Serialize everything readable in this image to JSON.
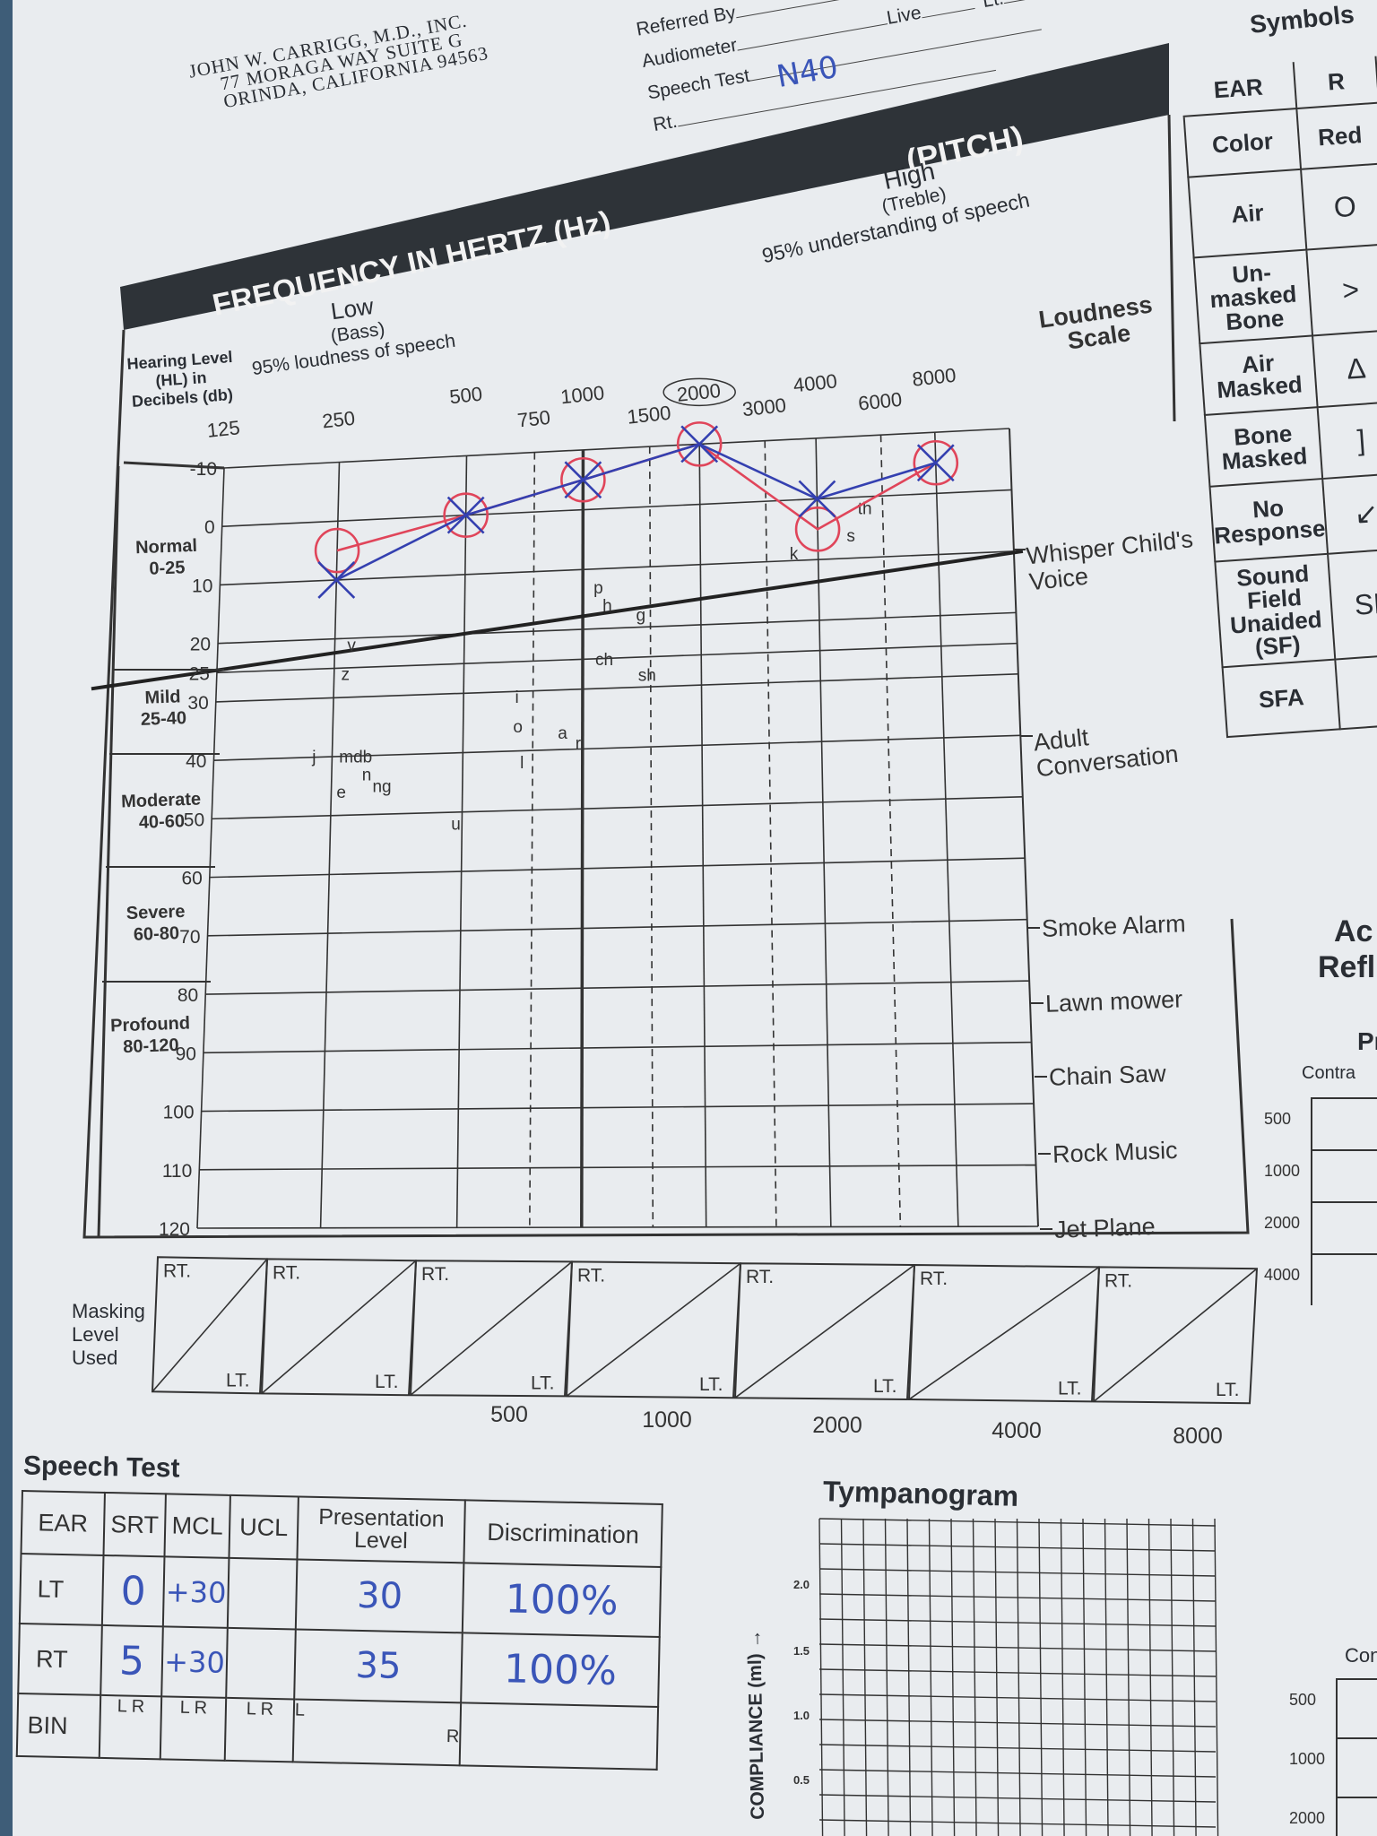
{
  "clinic": {
    "name": "JOHN W. CARRIGG, M.D., INC.",
    "address1": "77 MORAGA WAY     SUITE G",
    "address2": "ORINDA, CALIFORNIA 94563"
  },
  "form_fields": {
    "referred_by": "Referred By",
    "audiometer": "Audiometer",
    "speech_test": "Speech Test",
    "speech_test_value": "N40",
    "rt": "Rt.",
    "live": "Live",
    "lt": "Lt."
  },
  "banner": {
    "title": "FREQUENCY IN HERTZ (Hz)",
    "pitch": "(PITCH)"
  },
  "freq_labels": {
    "low": "Low",
    "bass": "(Bass)",
    "low_caption": "95% loudness of speech",
    "high": "High",
    "treble": "(Treble)",
    "high_caption": "95% understanding of speech",
    "hearing_level": "Hearing Level (HL) in Decibels (db)",
    "loudness_scale": "Loudness Scale"
  },
  "frequencies": [
    "125",
    "250",
    "500",
    "750",
    "1000",
    "1500",
    "2000",
    "3000",
    "4000",
    "6000",
    "8000"
  ],
  "db_ticks": [
    "-10",
    "0",
    "10",
    "20",
    "25",
    "30",
    "40",
    "50",
    "60",
    "70",
    "80",
    "90",
    "100",
    "110",
    "120"
  ],
  "hearing_categories": [
    {
      "name": "Normal",
      "range": "0-25"
    },
    {
      "name": "Mild",
      "range": "25-40"
    },
    {
      "name": "Moderate",
      "range": "40-60"
    },
    {
      "name": "Severe",
      "range": "60-80"
    },
    {
      "name": "Profound",
      "range": "80-120"
    }
  ],
  "loudness_scale": [
    "Whisper Child's Voice",
    "Adult Conversation",
    "Smoke Alarm",
    "Lawn mower",
    "Chain Saw",
    "Rock Music",
    "Jet Plane"
  ],
  "speech_sounds": [
    "v",
    "z",
    "p",
    "h",
    "g",
    "ch",
    "sh",
    "i",
    "o",
    "a",
    "r",
    "j",
    "mdb",
    "n",
    "ng",
    "e",
    "l",
    "u",
    "k",
    "s",
    "th"
  ],
  "chart_data": {
    "type": "line",
    "title": "FREQUENCY IN HERTZ (Hz)",
    "x_scale": "log",
    "x": [
      250,
      500,
      1000,
      2000,
      4000,
      8000
    ],
    "ylim": [
      120,
      -10
    ],
    "series": [
      {
        "name": "RT",
        "color": "#e0455a",
        "marker": "circle",
        "values": [
          5,
          0,
          -5,
          -10,
          5,
          -5
        ]
      },
      {
        "name": "LT",
        "color": "#3440b0",
        "marker": "x",
        "values": [
          10,
          0,
          -5,
          -10,
          0,
          -5
        ]
      }
    ]
  },
  "masking": {
    "label": "Masking Level Used",
    "rt": "RT.",
    "lt": "LT.",
    "freqs": [
      "500",
      "1000",
      "2000",
      "4000",
      "8000"
    ]
  },
  "symbols": {
    "title": "Symbols",
    "ear": "EAR",
    "r": "R",
    "rows": [
      {
        "label": "Color",
        "r": "Red"
      },
      {
        "label": "Air",
        "r": "O"
      },
      {
        "label": "Un-masked Bone",
        "r": ">"
      },
      {
        "label": "Air Masked",
        "r": "Δ"
      },
      {
        "label": "Bone Masked",
        "r": "]"
      },
      {
        "label": "No Response",
        "r": "↙"
      },
      {
        "label": "Sound Field Unaided (SF)",
        "r": "SF"
      },
      {
        "label": "SFA",
        "r": ""
      }
    ]
  },
  "right_panel": {
    "acoustic": "Ac",
    "reflex": "Refl",
    "pr": "Pr",
    "contra": "Contra",
    "freqs": [
      "500",
      "1000",
      "2000",
      "4000"
    ],
    "con": "Con",
    "freqs2": [
      "500",
      "1000",
      "2000"
    ]
  },
  "speech_test": {
    "title": "Speech Test",
    "headers": [
      "EAR",
      "SRT",
      "MCL",
      "UCL",
      "Presentation Level",
      "Discrimination"
    ],
    "rows": [
      {
        "ear": "LT",
        "srt": "0",
        "mcl": "+30",
        "ucl": "",
        "level": "30",
        "disc": "100%"
      },
      {
        "ear": "RT",
        "srt": "5",
        "mcl": "+30",
        "ucl": "",
        "level": "35",
        "disc": "100%"
      },
      {
        "ear": "BIN",
        "srt": "L R",
        "mcl": "L R",
        "ucl": "L R",
        "level": "L",
        "disc": ""
      }
    ],
    "bin_r": "R"
  },
  "tympanogram": {
    "title": "Tympanogram",
    "axis_label": "COMPLIANCE (ml) →",
    "ticks": [
      "2.0",
      "1.5",
      "1.0",
      "0.5"
    ]
  }
}
